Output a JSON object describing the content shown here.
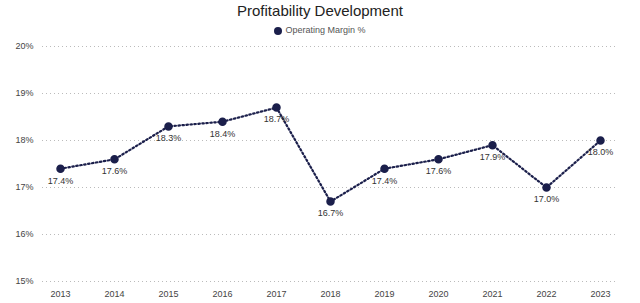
{
  "chart_data": {
    "type": "line",
    "title": "Profitability Development",
    "categories": [
      "2013",
      "2014",
      "2015",
      "2016",
      "2017",
      "2018",
      "2019",
      "2020",
      "2021",
      "2022",
      "2023"
    ],
    "series": [
      {
        "name": "Operating Margin %",
        "color": "#1b1f4b",
        "marker": "circle",
        "line_style": "dotted",
        "values": [
          17.4,
          17.6,
          18.3,
          18.4,
          18.7,
          16.7,
          17.4,
          17.6,
          17.9,
          17.0,
          18.0
        ],
        "value_labels": [
          "17.4%",
          "17.6%",
          "18.3%",
          "18.4%",
          "18.7%",
          "16.7%",
          "17.4%",
          "17.6%",
          "17.9%",
          "17.0%",
          "18.0%"
        ]
      }
    ],
    "ylim": [
      15,
      20
    ],
    "yticks": [
      {
        "value": 15,
        "label": "15%"
      },
      {
        "value": 16,
        "label": "16%"
      },
      {
        "value": 17,
        "label": "17%"
      },
      {
        "value": 18,
        "label": "18%"
      },
      {
        "value": 19,
        "label": "19%"
      },
      {
        "value": 20,
        "label": "20%"
      }
    ],
    "grid": true,
    "legend": "top",
    "data_labels": true
  }
}
